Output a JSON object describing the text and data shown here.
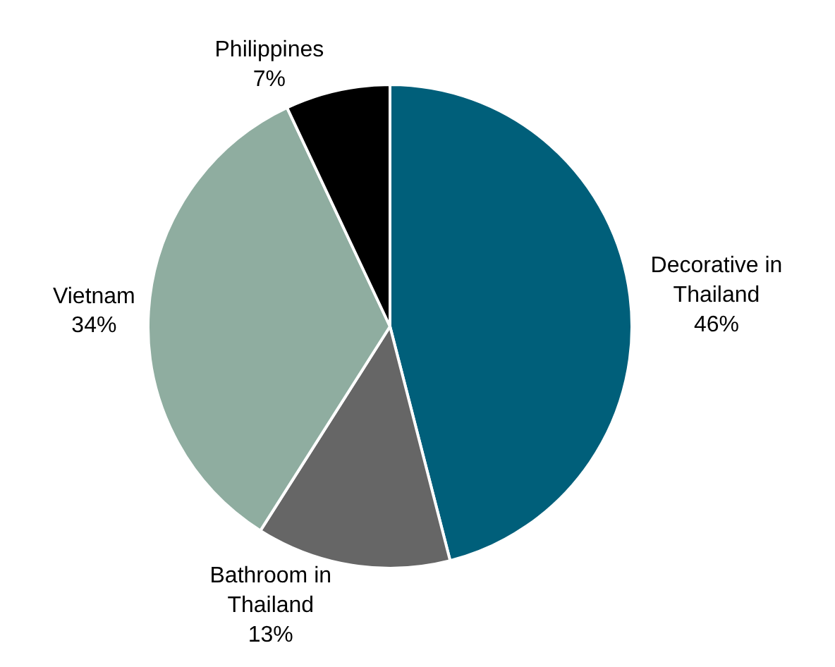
{
  "chart_data": {
    "type": "pie",
    "categories": [
      "Decorative in Thailand",
      "Bathroom in Thailand",
      "Vietnam",
      "Philippines"
    ],
    "values": [
      46,
      13,
      34,
      7
    ],
    "value_labels": [
      "46%",
      "13%",
      "34%",
      "7%"
    ],
    "colors": [
      "#005f7a",
      "#666666",
      "#8fada0",
      "#000000"
    ],
    "legend": false
  }
}
